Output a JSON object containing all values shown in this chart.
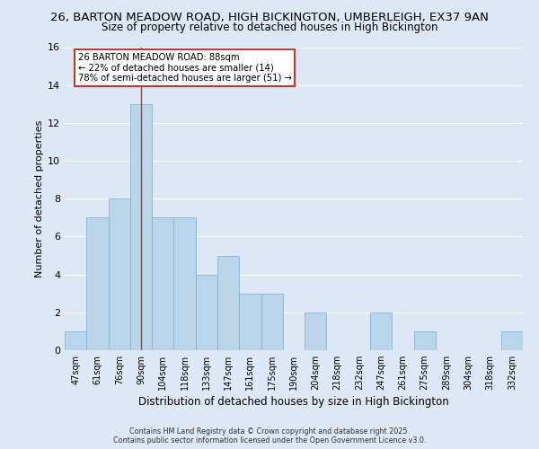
{
  "title1": "26, BARTON MEADOW ROAD, HIGH BICKINGTON, UMBERLEIGH, EX37 9AN",
  "title2": "Size of property relative to detached houses in High Bickington",
  "xlabel": "Distribution of detached houses by size in High Bickington",
  "ylabel": "Number of detached properties",
  "categories": [
    "47sqm",
    "61sqm",
    "76sqm",
    "90sqm",
    "104sqm",
    "118sqm",
    "133sqm",
    "147sqm",
    "161sqm",
    "175sqm",
    "190sqm",
    "204sqm",
    "218sqm",
    "232sqm",
    "247sqm",
    "261sqm",
    "275sqm",
    "289sqm",
    "304sqm",
    "318sqm",
    "332sqm"
  ],
  "values": [
    1,
    7,
    8,
    13,
    7,
    7,
    4,
    5,
    3,
    3,
    0,
    2,
    0,
    0,
    2,
    0,
    1,
    0,
    0,
    0,
    1
  ],
  "bar_color": "#bad4ea",
  "bar_edge_color": "#7aafd4",
  "vline_x": 3,
  "vline_color": "#c0392b",
  "ylim": [
    0,
    16
  ],
  "yticks": [
    0,
    2,
    4,
    6,
    8,
    10,
    12,
    14,
    16
  ],
  "annotation_box_text": "26 BARTON MEADOW ROAD: 88sqm\n← 22% of detached houses are smaller (14)\n78% of semi-detached houses are larger (51) →",
  "annotation_box_color": "#ffffff",
  "annotation_box_edge_color": "#c0392b",
  "footer1": "Contains HM Land Registry data © Crown copyright and database right 2025.",
  "footer2": "Contains public sector information licensed under the Open Government Licence v3.0.",
  "bg_color": "#dce8f5",
  "grid_color": "#ffffff"
}
